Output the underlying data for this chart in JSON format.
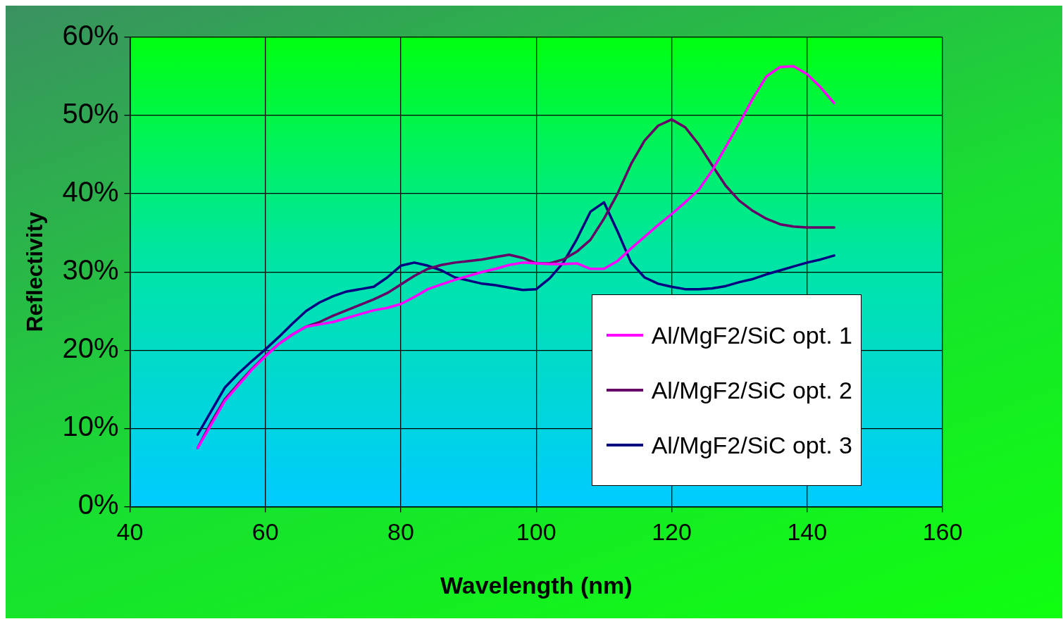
{
  "chart_data": {
    "type": "line",
    "xlabel": "Wavelength (nm)",
    "ylabel": "Reflectivity",
    "xlim": [
      40,
      160
    ],
    "xticks": [
      40,
      60,
      80,
      100,
      120,
      140,
      160
    ],
    "ylim": [
      0,
      60
    ],
    "yticks": [
      {
        "value": 0,
        "label": "0%"
      },
      {
        "value": 10,
        "label": "10%"
      },
      {
        "value": 20,
        "label": "20%"
      },
      {
        "value": 30,
        "label": "30%"
      },
      {
        "value": 40,
        "label": "40%"
      },
      {
        "value": 50,
        "label": "50%"
      },
      {
        "value": 60,
        "label": "60%"
      }
    ],
    "x": [
      50,
      52,
      54,
      56,
      58,
      60,
      62,
      64,
      66,
      68,
      70,
      72,
      74,
      76,
      78,
      80,
      82,
      84,
      86,
      88,
      90,
      92,
      94,
      96,
      98,
      100,
      102,
      104,
      106,
      108,
      110,
      112,
      114,
      116,
      118,
      120,
      122,
      124,
      126,
      128,
      130,
      132,
      134,
      136,
      138,
      140,
      142,
      144
    ],
    "series": [
      {
        "name": "Al/MgF2/SiC opt. 1",
        "color": "#ff00ff",
        "values": [
          7.5,
          10.5,
          13.5,
          15.5,
          17.5,
          19.2,
          20.8,
          22,
          23,
          23.3,
          23.6,
          24.1,
          24.6,
          25.1,
          25.4,
          25.9,
          26.8,
          27.8,
          28.4,
          29,
          29.5,
          30,
          30.4,
          30.9,
          31.2,
          31.1,
          31,
          31,
          31.1,
          30.4,
          30.4,
          31.4,
          33,
          34.5,
          36,
          37.4,
          38.9,
          40.5,
          43,
          46,
          49,
          52.2,
          55,
          56.2,
          56.3,
          55.3,
          53.6,
          51.6
        ]
      },
      {
        "name": "Al/MgF2/SiC opt. 2",
        "color": "#660066",
        "values": [
          7.5,
          10.8,
          13.7,
          15.7,
          17.6,
          19.3,
          20.8,
          22,
          23,
          23.6,
          24.4,
          25.1,
          25.8,
          26.5,
          27.3,
          28.4,
          29.5,
          30.4,
          30.9,
          31.2,
          31.4,
          31.6,
          31.9,
          32.2,
          31.8,
          31.1,
          31.1,
          31.6,
          32.6,
          34.1,
          36.8,
          40,
          43.8,
          46.8,
          48.7,
          49.5,
          48.5,
          46.3,
          43.6,
          41,
          39.1,
          37.8,
          36.8,
          36.1,
          35.8,
          35.7,
          35.7,
          35.7
        ]
      },
      {
        "name": "Al/MgF2/SiC opt. 3",
        "color": "#000080",
        "values": [
          9.2,
          12.2,
          15.2,
          17,
          18.6,
          20.1,
          21.7,
          23.4,
          25,
          26.1,
          26.9,
          27.5,
          27.8,
          28.1,
          29.3,
          30.8,
          31.2,
          30.8,
          30.2,
          29.3,
          28.9,
          28.5,
          28.3,
          28,
          27.7,
          27.8,
          29.2,
          31.2,
          34.2,
          37.7,
          38.9,
          35.2,
          31.2,
          29.3,
          28.5,
          28.1,
          27.8,
          27.8,
          27.9,
          28.2,
          28.7,
          29.1,
          29.7,
          30.2,
          30.7,
          31.2,
          31.6,
          32.1
        ]
      }
    ],
    "grid": true,
    "legend": "bottom right",
    "marker": "none",
    "line_style": "solid"
  }
}
